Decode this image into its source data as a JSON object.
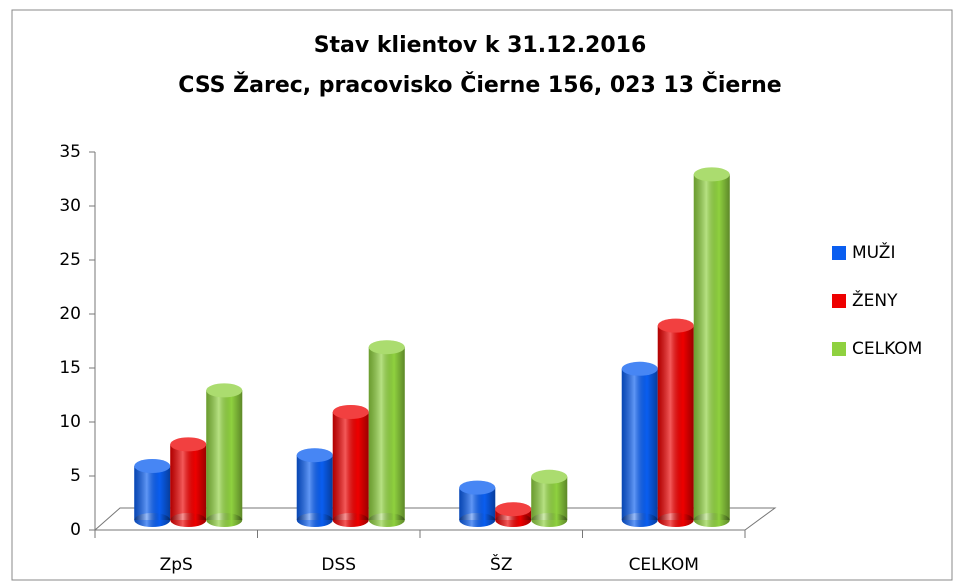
{
  "chart_data": {
    "type": "bar3d",
    "title": "Stav klientov k 31.12.2016",
    "subtitle": "CSS Žarec, pracovisko Čierne 156, 023 13 Čierne",
    "categories": [
      "ZpS",
      "DSS",
      "ŠZ",
      "CELKOM"
    ],
    "series": [
      {
        "name": "MUŽI",
        "color": "#0a5ef0",
        "values": [
          5,
          6,
          3,
          14
        ]
      },
      {
        "name": "ŽENY",
        "color": "#ee0000",
        "values": [
          7,
          10,
          1,
          18
        ]
      },
      {
        "name": "CELKOM",
        "color": "#8fd13f",
        "values": [
          12,
          16,
          4,
          32
        ]
      }
    ],
    "ylim": [
      0,
      35
    ],
    "yticks": [
      0,
      5,
      10,
      15,
      20,
      25,
      30,
      35
    ],
    "legend": "right"
  }
}
